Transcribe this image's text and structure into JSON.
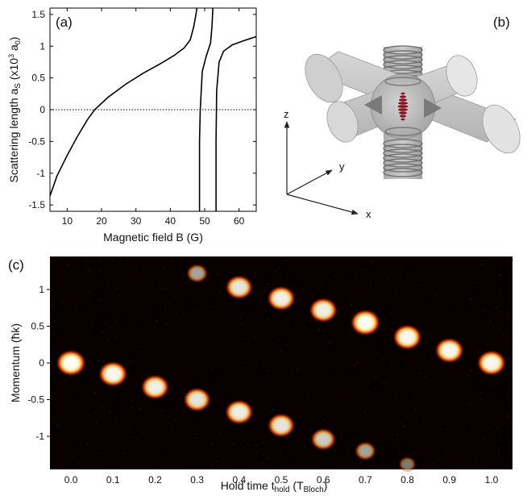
{
  "figure": {
    "panel_a": "(a)",
    "panel_b": "(b)",
    "panel_c": "(c)"
  },
  "chart_data": [
    {
      "type": "line",
      "panel": "(a)",
      "xlabel": "Magnetic field B (G)",
      "ylabel_main": "Scattering length a",
      "ylabel_sub": "S",
      "ylabel_unit_open": " (x10",
      "ylabel_unit_sup": "3",
      "ylabel_unit_a": " a",
      "ylabel_unit_sub": "0",
      "ylabel_unit_close": ")",
      "xlim": [
        5,
        65
      ],
      "ylim": [
        -1.6,
        1.6
      ],
      "xticks": [
        10,
        20,
        30,
        40,
        50,
        60
      ],
      "yticks": [
        -1.5,
        -1,
        -0.5,
        0,
        0.5,
        1,
        1.5
      ],
      "ytick_labels": [
        "-1.5",
        "-1",
        "-0.5",
        "0",
        "0.5",
        "1",
        "1.5"
      ],
      "zero_line": "dotted",
      "series": [
        {
          "x": [
            5,
            7,
            10,
            13,
            16,
            18,
            22,
            27,
            32,
            37,
            41,
            44,
            45.8,
            46.8,
            47.3,
            47.6,
            47.8
          ],
          "y": [
            -1.36,
            -1.05,
            -0.72,
            -0.42,
            -0.15,
            0.0,
            0.2,
            0.4,
            0.57,
            0.72,
            0.85,
            0.97,
            1.1,
            1.3,
            1.45,
            1.55,
            1.62
          ]
        },
        {
          "x": [
            48.5,
            48.5,
            48.7,
            49.3,
            50.5,
            51.7,
            52.1,
            52.3,
            52.4
          ],
          "y": [
            -1.62,
            -0.5,
            0.0,
            0.6,
            0.85,
            1.05,
            1.3,
            1.5,
            1.62
          ]
        },
        {
          "x": [
            53.3,
            53.3,
            53.5,
            54.2,
            55.5,
            58,
            61,
            65
          ],
          "y": [
            -1.62,
            -0.5,
            0.3,
            0.75,
            0.92,
            1.02,
            1.08,
            1.15
          ]
        }
      ]
    },
    {
      "type": "scatter",
      "panel": "(c)",
      "xlabel": "Hold time t",
      "xlabel_sub": "hold",
      "xlabel_open": " (T",
      "xlabel_unit_sub": "Bloch",
      "xlabel_close": ")",
      "ylabel": "Momentum (ħk)",
      "xlim": [
        -0.05,
        1.05
      ],
      "ylim": [
        -1.45,
        1.45
      ],
      "xticks": [
        0.0,
        0.1,
        0.2,
        0.3,
        0.4,
        0.5,
        0.6,
        0.7,
        0.8,
        0.9,
        1.0
      ],
      "xtick_labels": [
        "0.0",
        "0.1",
        "0.2",
        "0.3",
        "0.4",
        "0.5",
        "0.6",
        "0.7",
        "0.8",
        "0.9",
        "1.0"
      ],
      "yticks": [
        -1,
        -0.5,
        0,
        0.5,
        1
      ],
      "ytick_labels": [
        "-1",
        "-0.5",
        "0",
        "0.5",
        "1"
      ],
      "series": [
        {
          "x": [
            0.0,
            0.1,
            0.2,
            0.3,
            0.4,
            0.5,
            0.6,
            0.7,
            0.8,
            0.9,
            1.0
          ],
          "y": [
            0.0,
            -0.15,
            -0.33,
            -0.5,
            -0.67,
            -0.85,
            -1.04,
            -1.2,
            -1.38,
            0.17,
            0.0
          ],
          "intensity": [
            1.0,
            0.95,
            0.9,
            0.85,
            0.9,
            0.85,
            0.7,
            0.45,
            0.2,
            0.95,
            0.95
          ]
        },
        {
          "x": [
            0.3,
            0.4,
            0.5,
            0.6,
            0.7,
            0.8
          ],
          "y": [
            1.22,
            1.03,
            0.88,
            0.72,
            0.55,
            0.35
          ],
          "intensity": [
            0.45,
            0.85,
            0.9,
            0.9,
            1.0,
            0.95
          ]
        }
      ]
    }
  ],
  "diagram_b": {
    "axis_labels": [
      "z",
      "y",
      "x"
    ]
  }
}
